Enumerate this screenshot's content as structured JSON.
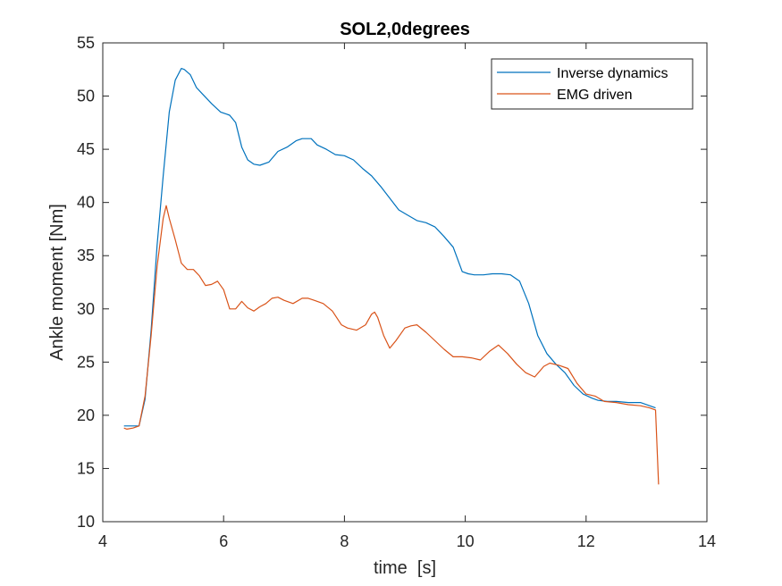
{
  "chart_data": {
    "type": "line",
    "title": "SOL2,0degrees",
    "xlabel": "time  [s]",
    "ylabel": "Ankle moment [Nm]",
    "xlim": [
      4,
      14
    ],
    "ylim": [
      10,
      55
    ],
    "xticks": [
      4,
      6,
      8,
      10,
      12,
      14
    ],
    "yticks": [
      10,
      15,
      20,
      25,
      30,
      35,
      40,
      45,
      50,
      55
    ],
    "grid": false,
    "legend_position": "top-right",
    "series": [
      {
        "name": "Inverse dynamics",
        "color": "#0072BD",
        "x": [
          4.35,
          4.4,
          4.5,
          4.6,
          4.7,
          4.8,
          4.9,
          5.0,
          5.1,
          5.2,
          5.3,
          5.35,
          5.45,
          5.55,
          5.65,
          5.8,
          5.95,
          6.1,
          6.2,
          6.3,
          6.4,
          6.5,
          6.6,
          6.75,
          6.9,
          7.05,
          7.2,
          7.3,
          7.45,
          7.55,
          7.7,
          7.85,
          8.0,
          8.15,
          8.3,
          8.45,
          8.6,
          8.75,
          8.9,
          9.05,
          9.2,
          9.35,
          9.5,
          9.65,
          9.8,
          9.95,
          10.05,
          10.15,
          10.3,
          10.45,
          10.6,
          10.75,
          10.9,
          11.05,
          11.2,
          11.35,
          11.5,
          11.65,
          11.8,
          11.95,
          12.1,
          12.2,
          12.35,
          12.5,
          12.7,
          12.9,
          13.05,
          13.15
        ],
        "y": [
          19.0,
          19.0,
          19.0,
          19.0,
          21.5,
          28.0,
          36.0,
          42.5,
          48.5,
          51.5,
          52.6,
          52.5,
          52.0,
          50.8,
          50.2,
          49.3,
          48.5,
          48.2,
          47.5,
          45.2,
          44.0,
          43.6,
          43.5,
          43.8,
          44.8,
          45.2,
          45.8,
          46.0,
          46.0,
          45.4,
          45.0,
          44.5,
          44.4,
          44.0,
          43.2,
          42.5,
          41.5,
          40.4,
          39.3,
          38.8,
          38.3,
          38.1,
          37.7,
          36.8,
          35.8,
          33.5,
          33.3,
          33.2,
          33.2,
          33.3,
          33.3,
          33.2,
          32.6,
          30.5,
          27.5,
          25.8,
          24.8,
          24.0,
          22.8,
          22.0,
          21.6,
          21.4,
          21.3,
          21.3,
          21.2,
          21.2,
          20.9,
          20.7
        ]
      },
      {
        "name": "EMG driven",
        "color": "#D95319",
        "x": [
          4.35,
          4.4,
          4.5,
          4.6,
          4.7,
          4.8,
          4.9,
          5.0,
          5.05,
          5.1,
          5.2,
          5.3,
          5.4,
          5.5,
          5.6,
          5.7,
          5.8,
          5.9,
          6.0,
          6.1,
          6.2,
          6.3,
          6.4,
          6.5,
          6.6,
          6.7,
          6.8,
          6.9,
          7.0,
          7.15,
          7.3,
          7.4,
          7.5,
          7.65,
          7.8,
          7.95,
          8.05,
          8.2,
          8.35,
          8.45,
          8.5,
          8.55,
          8.65,
          8.75,
          8.85,
          9.0,
          9.1,
          9.2,
          9.35,
          9.5,
          9.65,
          9.8,
          9.95,
          10.1,
          10.25,
          10.4,
          10.55,
          10.7,
          10.85,
          11.0,
          11.15,
          11.3,
          11.4,
          11.55,
          11.7,
          11.85,
          12.0,
          12.15,
          12.3,
          12.5,
          12.7,
          12.9,
          13.05,
          13.15,
          13.2
        ],
        "y": [
          18.8,
          18.7,
          18.8,
          19.0,
          21.8,
          27.5,
          34.0,
          38.5,
          39.7,
          38.5,
          36.5,
          34.3,
          33.7,
          33.7,
          33.1,
          32.2,
          32.3,
          32.6,
          31.8,
          30.0,
          30.0,
          30.7,
          30.1,
          29.8,
          30.2,
          30.5,
          31.0,
          31.1,
          30.8,
          30.5,
          31.0,
          31.0,
          30.8,
          30.5,
          29.8,
          28.5,
          28.2,
          28.0,
          28.5,
          29.5,
          29.7,
          29.2,
          27.5,
          26.3,
          27.0,
          28.2,
          28.4,
          28.5,
          27.8,
          27.0,
          26.2,
          25.5,
          25.5,
          25.4,
          25.2,
          26.0,
          26.6,
          25.8,
          24.8,
          24.0,
          23.6,
          24.6,
          24.9,
          24.7,
          24.4,
          23.0,
          22.0,
          21.8,
          21.3,
          21.2,
          21.0,
          20.9,
          20.7,
          20.5,
          13.5
        ]
      }
    ]
  }
}
